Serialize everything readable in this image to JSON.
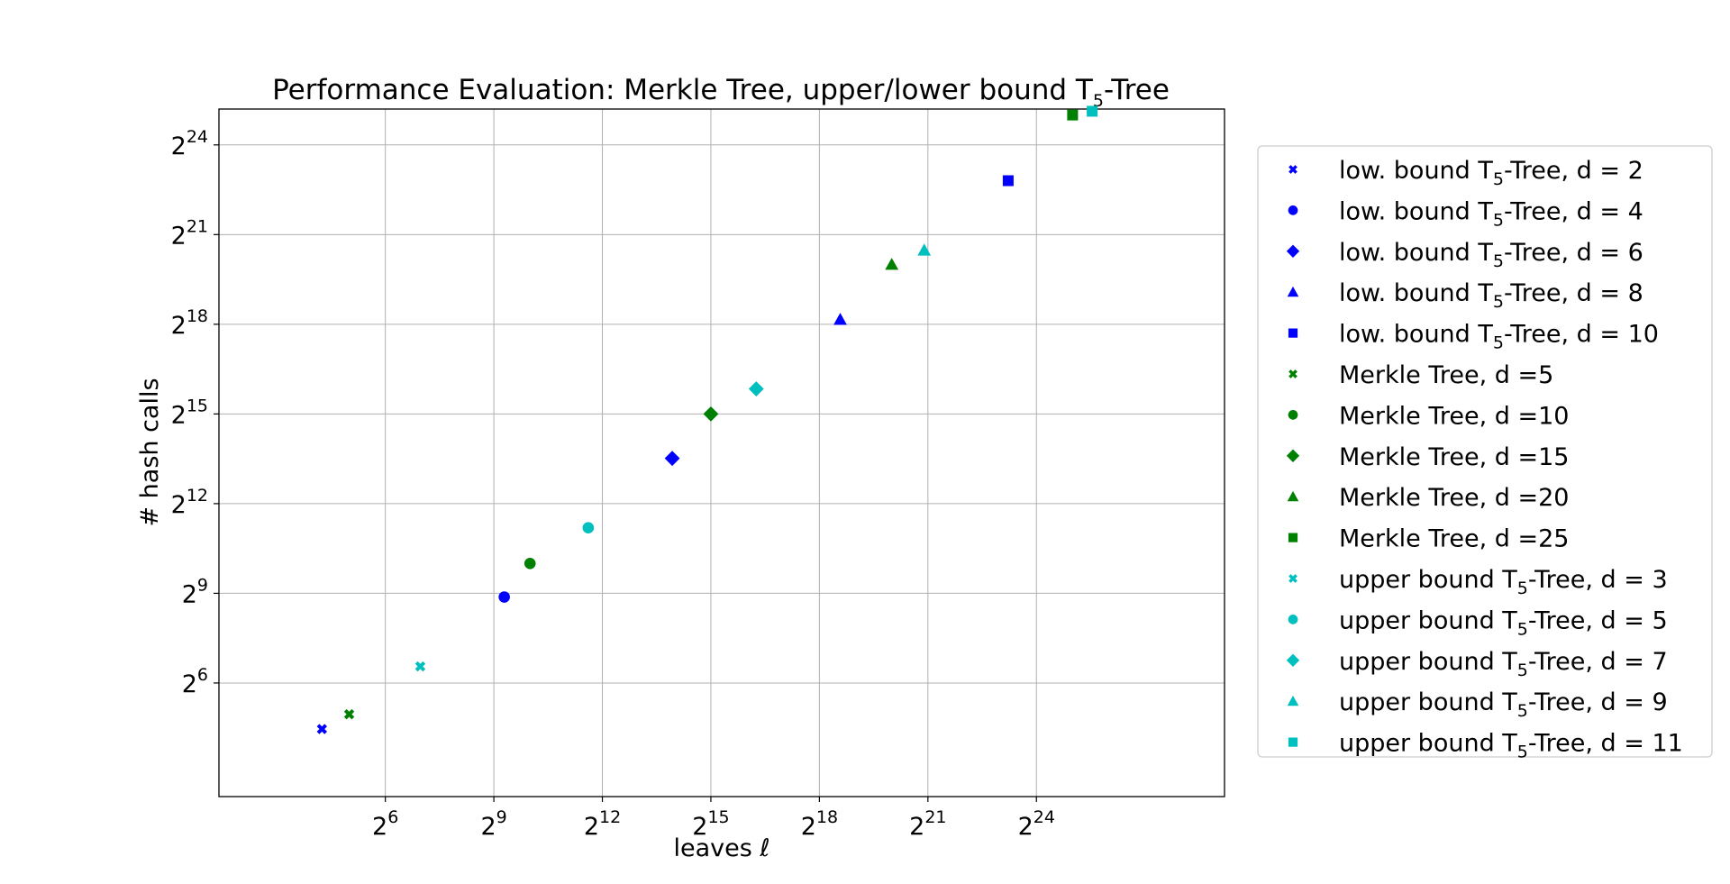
{
  "chart_data": {
    "type": "scatter",
    "title": "Performance Evaluation: Merkle Tree, upper/lower bound T",
    "title_sub": "5",
    "title_suffix": "-Tree",
    "xlabel": "leaves ℓ",
    "ylabel": "# hash calls",
    "x_scale": "log2",
    "y_scale": "log2",
    "xlim_exp": [
      1.4,
      29.2
    ],
    "ylim_exp": [
      2.2,
      25.2
    ],
    "x_ticks": [
      {
        "base": "2",
        "exp": "6"
      },
      {
        "base": "2",
        "exp": "9"
      },
      {
        "base": "2",
        "exp": "12"
      },
      {
        "base": "2",
        "exp": "15"
      },
      {
        "base": "2",
        "exp": "18"
      },
      {
        "base": "2",
        "exp": "21"
      },
      {
        "base": "2",
        "exp": "24"
      }
    ],
    "y_ticks": [
      {
        "base": "2",
        "exp": "6"
      },
      {
        "base": "2",
        "exp": "9"
      },
      {
        "base": "2",
        "exp": "12"
      },
      {
        "base": "2",
        "exp": "15"
      },
      {
        "base": "2",
        "exp": "18"
      },
      {
        "base": "2",
        "exp": "21"
      },
      {
        "base": "2",
        "exp": "24"
      }
    ],
    "x_tick_values": [
      64,
      512,
      4096,
      32768,
      262144,
      2097152,
      16777216
    ],
    "y_tick_values": [
      64,
      512,
      4096,
      32768,
      262144,
      2097152,
      16777216
    ],
    "grid": true,
    "legend_position": "outside right",
    "colors": {
      "blue": "#0000ff",
      "green": "#008000",
      "cyan": "#00bfbf"
    },
    "series": [
      {
        "name_prefix": "low. bound T",
        "name_sub": "5",
        "name_suffix": "-Tree, d = 2",
        "marker": "x",
        "color": "#0000ff",
        "x": 19,
        "y": 22
      },
      {
        "name_prefix": "low. bound T",
        "name_sub": "5",
        "name_suffix": "-Tree, d = 4",
        "marker": "circle",
        "color": "#0000ff",
        "x": 625,
        "y": 470
      },
      {
        "name_prefix": "low. bound T",
        "name_sub": "5",
        "name_suffix": "-Tree, d = 6",
        "marker": "diamond",
        "color": "#0000ff",
        "x": 15625,
        "y": 11700
      },
      {
        "name_prefix": "low. bound T",
        "name_sub": "5",
        "name_suffix": "-Tree, d = 8",
        "marker": "triangle",
        "color": "#0000ff",
        "x": 390625,
        "y": 293000
      },
      {
        "name_prefix": "low. bound T",
        "name_sub": "5",
        "name_suffix": "-Tree, d = 10",
        "marker": "square",
        "color": "#0000ff",
        "x": 9765625,
        "y": 7320000
      },
      {
        "name_prefix": "Merkle Tree, d =5",
        "name_sub": "",
        "name_suffix": "",
        "marker": "x",
        "color": "#008000",
        "x": 32,
        "y": 31
      },
      {
        "name_prefix": "Merkle Tree, d =10",
        "name_sub": "",
        "name_suffix": "",
        "marker": "circle",
        "color": "#008000",
        "x": 1024,
        "y": 1023
      },
      {
        "name_prefix": "Merkle Tree, d =15",
        "name_sub": "",
        "name_suffix": "",
        "marker": "diamond",
        "color": "#008000",
        "x": 32768,
        "y": 32767
      },
      {
        "name_prefix": "Merkle Tree, d =20",
        "name_sub": "",
        "name_suffix": "",
        "marker": "triangle",
        "color": "#008000",
        "x": 1048576,
        "y": 1048575
      },
      {
        "name_prefix": "Merkle Tree, d =25",
        "name_sub": "",
        "name_suffix": "",
        "marker": "square",
        "color": "#008000",
        "x": 33554432,
        "y": 33554431
      },
      {
        "name_prefix": "upper bound T",
        "name_sub": "5",
        "name_suffix": "-Tree, d = 3",
        "marker": "x",
        "color": "#00bfbf",
        "x": 125,
        "y": 94
      },
      {
        "name_prefix": "upper bound T",
        "name_sub": "5",
        "name_suffix": "-Tree, d = 5",
        "marker": "circle",
        "color": "#00bfbf",
        "x": 3125,
        "y": 2340
      },
      {
        "name_prefix": "upper bound T",
        "name_sub": "5",
        "name_suffix": "-Tree, d = 7",
        "marker": "diamond",
        "color": "#00bfbf",
        "x": 78125,
        "y": 58600
      },
      {
        "name_prefix": "upper bound T",
        "name_sub": "5",
        "name_suffix": "-Tree, d = 9",
        "marker": "triangle",
        "color": "#00bfbf",
        "x": 1953125,
        "y": 1460000
      },
      {
        "name_prefix": "upper bound T",
        "name_sub": "5",
        "name_suffix": "-Tree, d = 11",
        "marker": "square",
        "color": "#00bfbf",
        "x": 48828125,
        "y": 36600000
      }
    ]
  }
}
